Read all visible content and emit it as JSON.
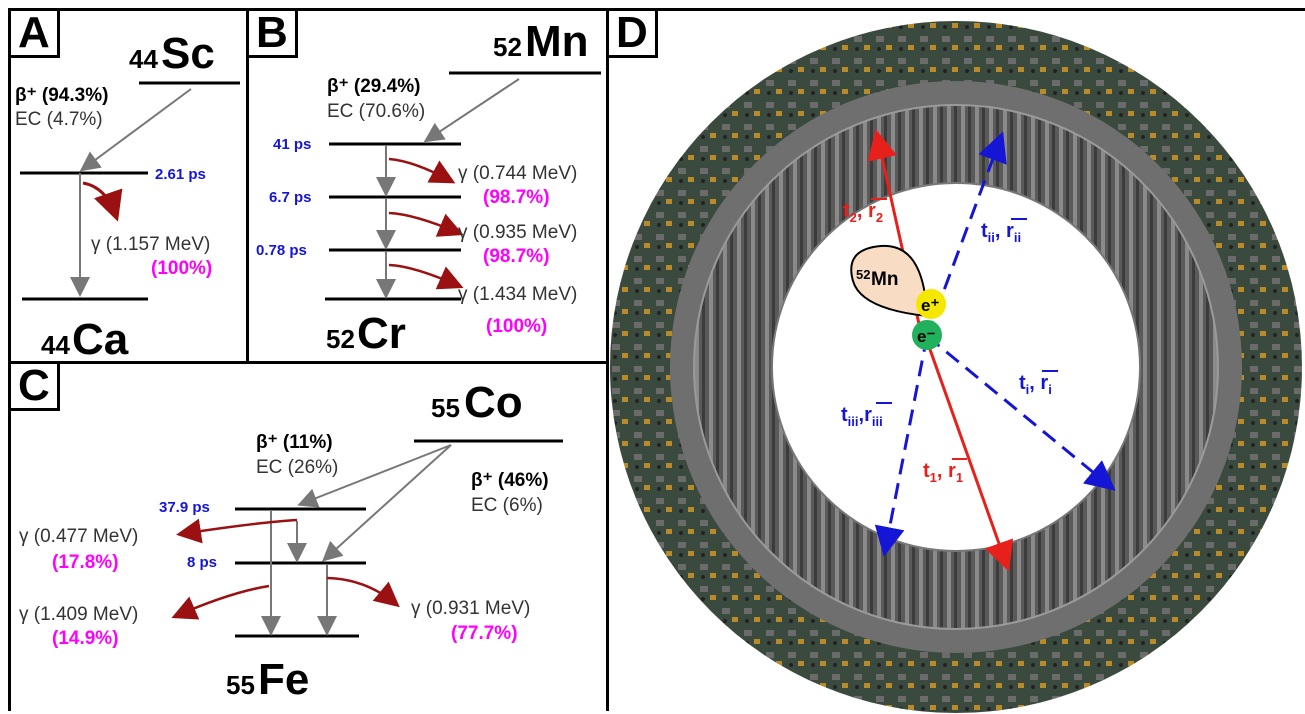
{
  "panelA": {
    "label": "A",
    "parent": {
      "mass": "44",
      "symbol": "Sc"
    },
    "daughter": {
      "mass": "44",
      "symbol": "Ca"
    },
    "beta_plus": "β⁺ (94.3%)",
    "ec": "EC (4.7%)",
    "level_time": "2.61 ps",
    "gamma": "γ (1.157 MeV)",
    "gamma_intensity": "(100%)"
  },
  "panelB": {
    "label": "B",
    "parent": {
      "mass": "52",
      "symbol": "Mn"
    },
    "daughter": {
      "mass": "52",
      "symbol": "Cr"
    },
    "beta_plus": "β⁺ (29.4%)",
    "ec": "EC (70.6%)",
    "levels": [
      "41 ps",
      "6.7 ps",
      "0.78 ps"
    ],
    "gammas": [
      {
        "energy": "γ (0.744 MeV)",
        "intensity": "(98.7%)"
      },
      {
        "energy": "γ (0.935 MeV)",
        "intensity": "(98.7%)"
      },
      {
        "energy": "γ (1.434 MeV)",
        "intensity": "(100%)"
      }
    ]
  },
  "panelC": {
    "label": "C",
    "parent": {
      "mass": "55",
      "symbol": "Co"
    },
    "daughter": {
      "mass": "55",
      "symbol": "Fe"
    },
    "branch1": {
      "beta_plus": "β⁺ (11%)",
      "ec": "EC (26%)"
    },
    "branch2": {
      "beta_plus": "β⁺ (46%)",
      "ec": "EC (6%)"
    },
    "levels": [
      "37.9 ps",
      "8 ps"
    ],
    "gammas": [
      {
        "energy": "γ (0.477 MeV)",
        "intensity": "(17.8%)"
      },
      {
        "energy": "γ (1.409 MeV)",
        "intensity": "(14.9%)"
      },
      {
        "energy": "γ (0.931 MeV)",
        "intensity": "(77.7%)"
      }
    ]
  },
  "panelD": {
    "label": "D",
    "source": {
      "mass": "52",
      "symbol": "Mn"
    },
    "positron": "e⁺",
    "electron": "e⁻",
    "red_labels": [
      {
        "t": "t",
        "sub": "2",
        "r": "r",
        "rsub": "2"
      },
      {
        "t": "t",
        "sub": "1",
        "r": "r",
        "rsub": "1"
      }
    ],
    "blue_labels": [
      {
        "t": "t",
        "sub": "ii",
        "r": "r",
        "rsub": "ii"
      },
      {
        "t": "t",
        "sub": "i",
        "r": "r",
        "rsub": "i"
      },
      {
        "t": "t",
        "sub": "iii",
        "r": "r",
        "rsub": "iii"
      }
    ],
    "colors": {
      "red": "#e8201c",
      "blue": "#1515d6",
      "positron": "#f5e800",
      "electron": "#21b15c",
      "source_fill": "#f9dcc4"
    }
  },
  "colors": {
    "magenta": "#ff00ff",
    "blue_time": "#1515d6",
    "arrow_gray": "#777777",
    "gamma_arrow": "#9b1010"
  }
}
